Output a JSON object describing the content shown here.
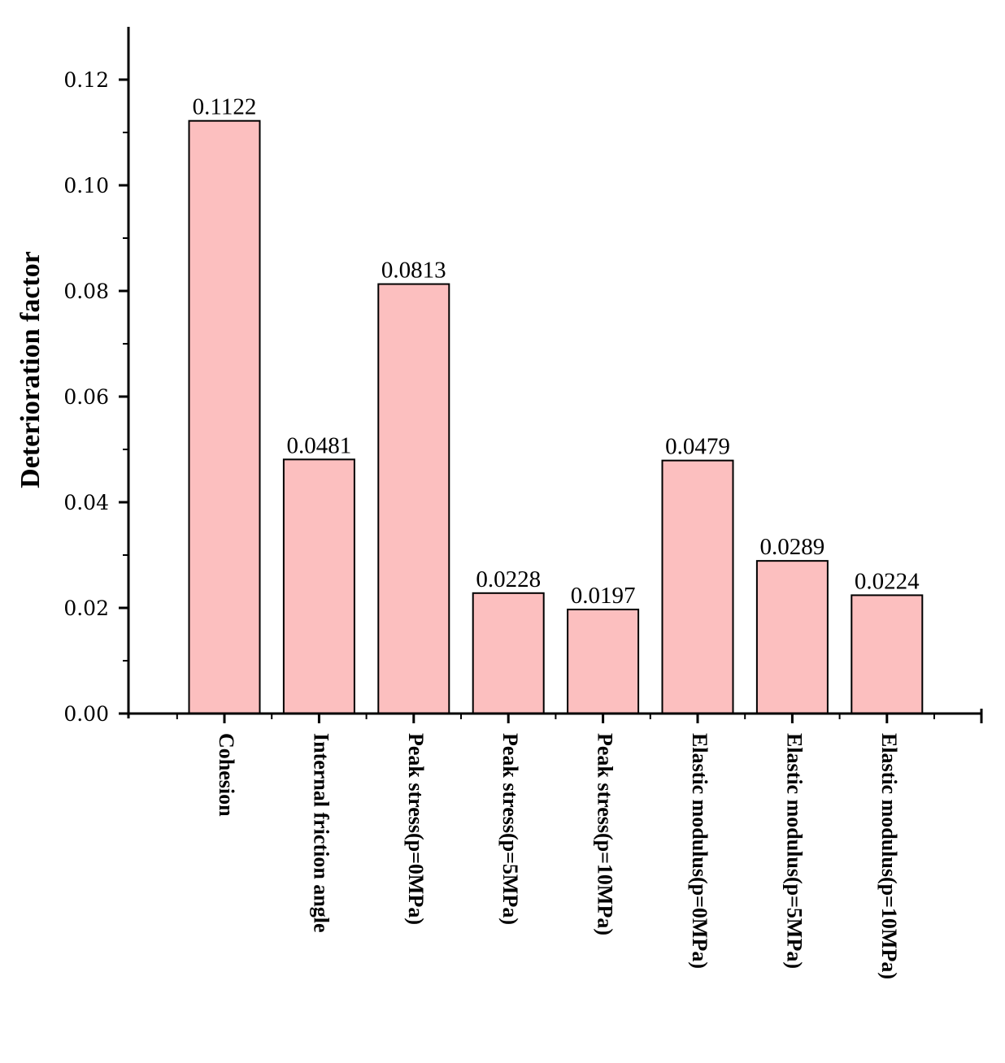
{
  "chart_data": {
    "type": "bar",
    "title": "",
    "xlabel": "",
    "ylabel": "Deterioration factor",
    "ylim": [
      0,
      0.13
    ],
    "yticks": [
      "0.00",
      "0.02",
      "0.04",
      "0.06",
      "0.08",
      "0.10",
      "0.12"
    ],
    "ytick_values": [
      0,
      0.02,
      0.04,
      0.06,
      0.08,
      0.1,
      0.12
    ],
    "categories": [
      "Cohesion",
      "Internal friction angle",
      "Peak stress(p=0MPa)",
      "Peak stress(p=5MPa)",
      "Peak stress(p=10MPa)",
      "Elastic modulus(p=0MPa)",
      "Elastic modulus(p=5MPa)",
      "Elastic modulus(p=10MPa)"
    ],
    "values": [
      0.1122,
      0.0481,
      0.0813,
      0.0228,
      0.0197,
      0.0479,
      0.0289,
      0.0224
    ],
    "data_labels": [
      "0.1122",
      "0.0481",
      "0.0813",
      "0.0228",
      "0.0197",
      "0.0479",
      "0.0289",
      "0.0224"
    ],
    "grid": false,
    "legend": "none",
    "colors": {
      "bar_fill": "#fcbfbf",
      "bar_stroke": "#000000",
      "axis": "#000000"
    }
  }
}
